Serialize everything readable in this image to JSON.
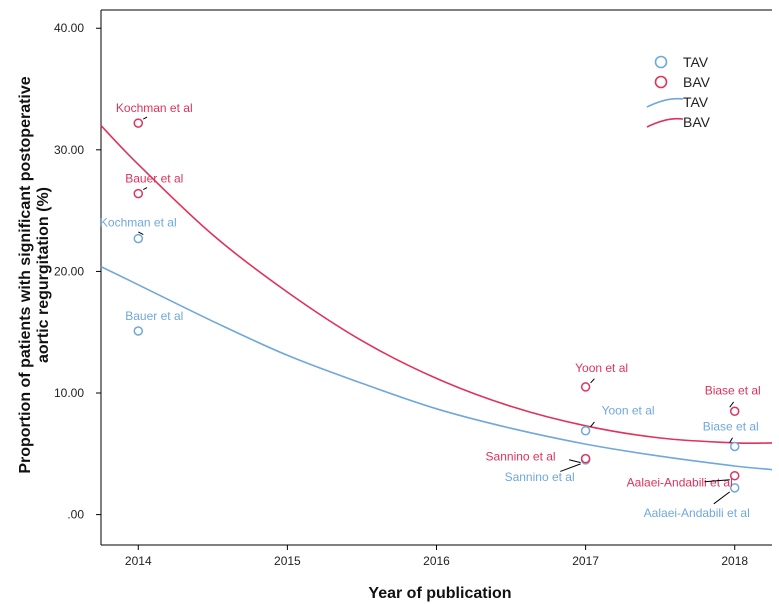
{
  "chart_data": {
    "type": "scatter",
    "title": "",
    "xlabel": "Year of publication",
    "ylabel_lines": [
      "Proportion of patients with significant postoperative",
      "aortic regurgitation (%)"
    ],
    "xlim": [
      2013.75,
      2018.25
    ],
    "ylim": [
      -2.5,
      41.5
    ],
    "x_ticks": [
      2014,
      2015,
      2016,
      2017,
      2018
    ],
    "x_tick_labels": [
      "2014",
      "2015",
      "2016",
      "2017",
      "2018"
    ],
    "y_ticks": [
      0,
      10,
      20,
      30,
      40
    ],
    "y_tick_labels": [
      ".00",
      "10.00",
      "20.00",
      "30.00",
      "40.00"
    ],
    "legend_position": "top-right",
    "legend": [
      {
        "kind": "marker",
        "label": "TAV",
        "color": "#6fa8dc"
      },
      {
        "kind": "marker",
        "label": "BAV",
        "color": "#e0325a"
      },
      {
        "kind": "line",
        "label": "TAV",
        "color": "#6fa8dc"
      },
      {
        "kind": "line",
        "label": "BAV",
        "color": "#e0325a"
      }
    ],
    "series": [
      {
        "name": "TAV",
        "color": "#6fa8dc",
        "points": [
          {
            "x": 2014,
            "y": 22.7,
            "label": "Kochman et al"
          },
          {
            "x": 2014,
            "y": 15.1,
            "label": "Bauer et al"
          },
          {
            "x": 2017,
            "y": 6.9,
            "label": "Yoon et al"
          },
          {
            "x": 2017,
            "y": 4.5,
            "label": "Sannino et al"
          },
          {
            "x": 2018,
            "y": 5.6,
            "label": "Biase et al"
          },
          {
            "x": 2018,
            "y": 2.2,
            "label": "Aalaei-Andabili et al"
          }
        ],
        "fit": {
          "x": [
            2013.75,
            2014,
            2014.5,
            2015,
            2015.5,
            2016,
            2016.5,
            2017,
            2017.5,
            2018,
            2018.25
          ],
          "y": [
            20.4,
            18.9,
            15.9,
            13.1,
            10.8,
            8.7,
            7.1,
            5.8,
            4.8,
            4.0,
            3.7
          ]
        }
      },
      {
        "name": "BAV",
        "color": "#e0325a",
        "points": [
          {
            "x": 2014,
            "y": 32.2,
            "label": "Kochman et al"
          },
          {
            "x": 2014,
            "y": 26.4,
            "label": "Bauer et al"
          },
          {
            "x": 2017,
            "y": 10.5,
            "label": "Yoon et al"
          },
          {
            "x": 2017,
            "y": 4.6,
            "label": "Sannino et al"
          },
          {
            "x": 2018,
            "y": 8.5,
            "label": "Biase et al"
          },
          {
            "x": 2018,
            "y": 3.2,
            "label": "Aalaei-Andabili et al"
          }
        ],
        "fit": {
          "x": [
            2013.75,
            2014,
            2014.5,
            2015,
            2015.5,
            2016,
            2016.5,
            2017,
            2017.5,
            2018,
            2018.25
          ],
          "y": [
            32.0,
            28.8,
            23.0,
            18.3,
            14.3,
            11.2,
            8.9,
            7.3,
            6.3,
            5.9,
            5.9
          ]
        }
      }
    ]
  }
}
